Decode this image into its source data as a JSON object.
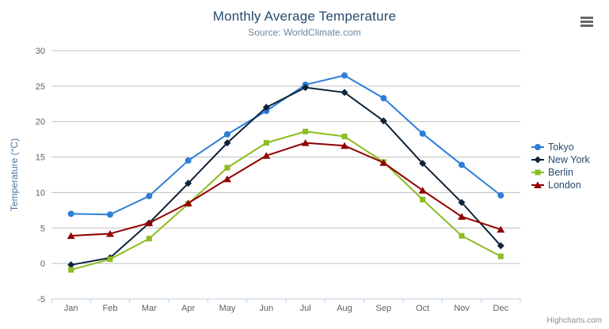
{
  "chart": {
    "credit": "Highcharts.com",
    "menu_icon": "hamburger-icon"
  },
  "palette": {
    "title_color": "#274b6d",
    "subtitle_color": "#6D869F",
    "axis_title_color": "#4d759e",
    "tick_label_color": "#606060",
    "gridline_color": "#C0C0C0",
    "axis_line_color": "#C0D0E0",
    "legend_text_color": "#274b6d",
    "credit_color": "#909090"
  },
  "chart_data": {
    "type": "line",
    "title": "Monthly Average Temperature",
    "subtitle": "Source: WorldClimate.com",
    "categories": [
      "Jan",
      "Feb",
      "Mar",
      "Apr",
      "May",
      "Jun",
      "Jul",
      "Aug",
      "Sep",
      "Oct",
      "Nov",
      "Dec"
    ],
    "xlabel": "",
    "ylabel": "Temperature (°C)",
    "ylim": [
      -5,
      30
    ],
    "yticks": [
      -5,
      0,
      5,
      10,
      15,
      20,
      25,
      30
    ],
    "grid": "horizontal",
    "legend_position": "right",
    "series": [
      {
        "name": "Tokyo",
        "color": "#2f7ed8",
        "marker": "circle",
        "values": [
          7.0,
          6.9,
          9.5,
          14.5,
          18.2,
          21.5,
          25.2,
          26.5,
          23.3,
          18.3,
          13.9,
          9.6
        ]
      },
      {
        "name": "New York",
        "color": "#0d233a",
        "marker": "diamond",
        "values": [
          -0.2,
          0.8,
          5.7,
          11.3,
          17.0,
          22.0,
          24.8,
          24.1,
          20.1,
          14.1,
          8.6,
          2.5
        ]
      },
      {
        "name": "Berlin",
        "color": "#8bbc21",
        "marker": "square",
        "values": [
          -0.9,
          0.6,
          3.5,
          8.4,
          13.5,
          17.0,
          18.6,
          17.9,
          14.3,
          9.0,
          3.9,
          1.0
        ]
      },
      {
        "name": "London",
        "color": "#910000",
        "marker": "triangle",
        "values": [
          3.9,
          4.2,
          5.7,
          8.5,
          11.9,
          15.2,
          17.0,
          16.6,
          14.2,
          10.3,
          6.6,
          4.8
        ]
      }
    ]
  }
}
